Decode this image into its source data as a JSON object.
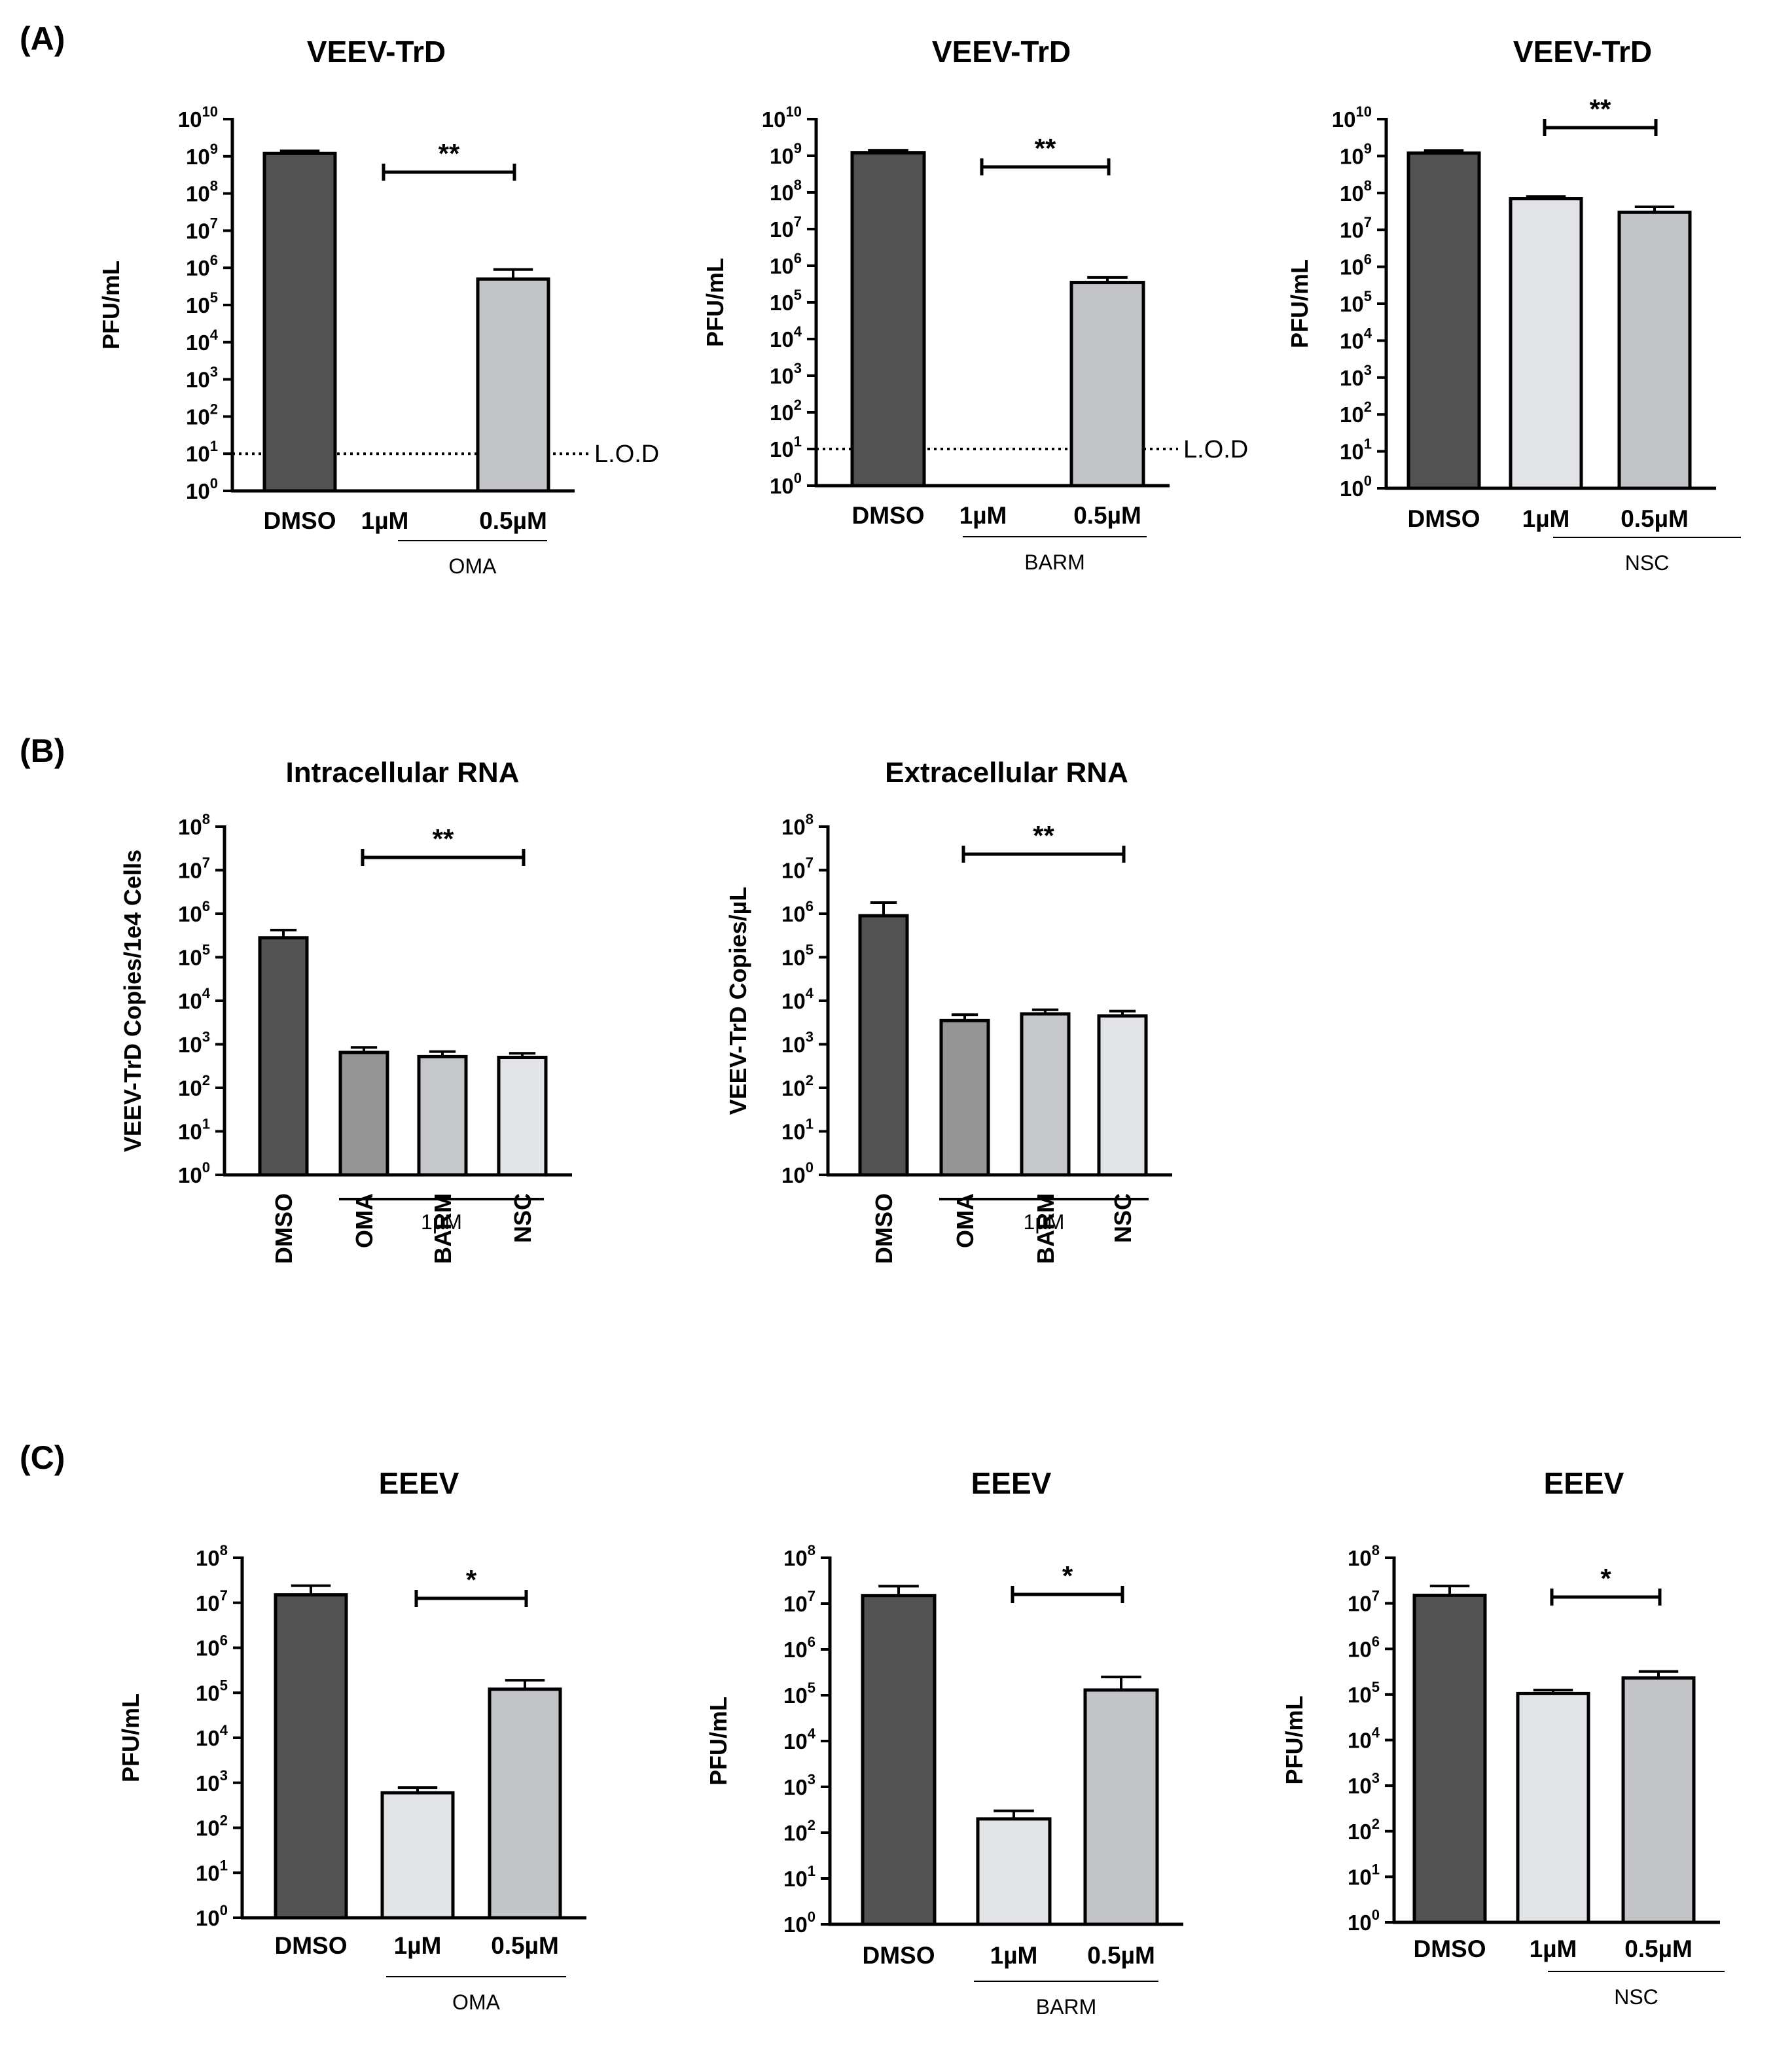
{
  "panel_labels": [
    "(A)",
    "(B)",
    "(C)"
  ],
  "colors": {
    "dmso": "#525252",
    "one_um": "#e2e3e7",
    "half_um": "#c3c4c8",
    "oma_b": "#959595",
    "barm_b": "#c6c7cb",
    "nsc_b": "#e2e3e7"
  },
  "chart_data": [
    {
      "id": "a1",
      "panel": "A",
      "type": "bar",
      "scale": "log10",
      "title": "VEEV-TrD",
      "ylabel": "PFU/mL",
      "ylim_exp": [
        0,
        10
      ],
      "categories": [
        "DMSO",
        "1µM",
        "0.5µM"
      ],
      "group_label": "OMA",
      "values": [
        1200000000.0,
        null,
        500000.0
      ],
      "errors": [
        1400000000.0,
        null,
        900000.0
      ],
      "lod": {
        "value": 10,
        "label": "L.O.D"
      },
      "significance": {
        "label": "**",
        "from": 1,
        "to": 2
      }
    },
    {
      "id": "a2",
      "panel": "A",
      "type": "bar",
      "scale": "log10",
      "title": "VEEV-TrD",
      "ylabel": "PFU/mL",
      "ylim_exp": [
        0,
        10
      ],
      "categories": [
        "DMSO",
        "1µM",
        "0.5µM"
      ],
      "group_label": "BARM",
      "values": [
        1200000000.0,
        null,
        350000.0
      ],
      "errors": [
        1400000000.0,
        null,
        480000.0
      ],
      "lod": {
        "value": 10,
        "label": "L.O.D"
      },
      "significance": {
        "label": "**",
        "from": 1,
        "to": 2
      }
    },
    {
      "id": "a3",
      "panel": "A",
      "type": "bar",
      "scale": "log10",
      "title": "VEEV-TrD",
      "ylabel": "PFU/mL",
      "ylim_exp": [
        0,
        10
      ],
      "categories": [
        "DMSO",
        "1µM",
        "0.5µM"
      ],
      "group_label": "NSC",
      "values": [
        1200000000.0,
        70000000.0,
        30000000.0
      ],
      "errors": [
        1400000000.0,
        80000000.0,
        42000000.0
      ],
      "significance": {
        "label": "**",
        "from": 1,
        "to": 2
      }
    },
    {
      "id": "b1",
      "panel": "B",
      "type": "bar",
      "scale": "log10",
      "title": "Intracellular RNA",
      "ylabel": "VEEV-TrD Copies/1e4 Cells",
      "ylim_exp": [
        0,
        8
      ],
      "categories": [
        "DMSO",
        "OMA",
        "BARM",
        "NSC"
      ],
      "group_label": "1µM",
      "values": [
        280000.0,
        650,
        520,
        500
      ],
      "errors": [
        420000.0,
        850,
        680,
        620
      ],
      "significance": {
        "label": "**",
        "from": 1,
        "to": 3
      }
    },
    {
      "id": "b2",
      "panel": "B",
      "type": "bar",
      "scale": "log10",
      "title": "Extracellular RNA",
      "ylabel": "VEEV-TrD Copies/µL",
      "ylim_exp": [
        0,
        8
      ],
      "categories": [
        "DMSO",
        "OMA",
        "BARM",
        "NSC"
      ],
      "group_label": "1µM",
      "values": [
        900000.0,
        3500.0,
        5000.0,
        4500.0
      ],
      "errors": [
        1800000.0,
        4800.0,
        6200.0,
        5800.0
      ],
      "significance": {
        "label": "**",
        "from": 1,
        "to": 3
      }
    },
    {
      "id": "c1",
      "panel": "C",
      "type": "bar",
      "scale": "log10",
      "title": "EEEV",
      "ylabel": "PFU/mL",
      "ylim_exp": [
        0,
        8
      ],
      "categories": [
        "DMSO",
        "1µM",
        "0.5µM"
      ],
      "group_label": "OMA",
      "values": [
        15000000.0,
        600,
        120000.0
      ],
      "errors": [
        24000000.0,
        780,
        190000.0
      ],
      "significance": {
        "label": "*",
        "from": 1,
        "to": 2
      }
    },
    {
      "id": "c2",
      "panel": "C",
      "type": "bar",
      "scale": "log10",
      "title": "EEEV",
      "ylabel": "PFU/mL",
      "ylim_exp": [
        0,
        8
      ],
      "categories": [
        "DMSO",
        "1µM",
        "0.5µM"
      ],
      "group_label": "BARM",
      "values": [
        15000000.0,
        200,
        130000.0
      ],
      "errors": [
        24000000.0,
        300,
        250000.0
      ],
      "significance": {
        "label": "*",
        "from": 1,
        "to": 2
      }
    },
    {
      "id": "c3",
      "panel": "C",
      "type": "bar",
      "scale": "log10",
      "title": "EEEV",
      "ylabel": "PFU/mL",
      "ylim_exp": [
        0,
        8
      ],
      "categories": [
        "DMSO",
        "1µM",
        "0.5µM"
      ],
      "group_label": "NSC",
      "values": [
        15000000.0,
        105000.0,
        230000.0
      ],
      "errors": [
        24000000.0,
        125000.0,
        320000.0
      ],
      "significance": {
        "label": "*",
        "from": 1,
        "to": 2
      }
    }
  ]
}
